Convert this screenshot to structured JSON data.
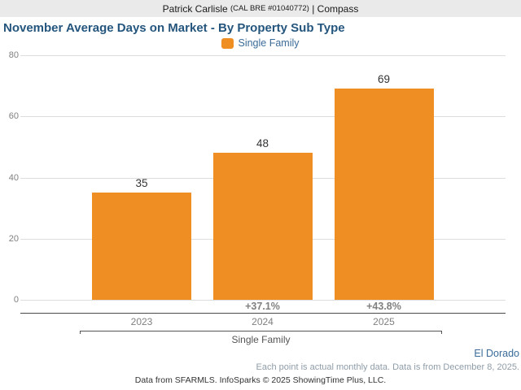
{
  "header": {
    "name": "Patrick Carlisle",
    "license": "(CAL BRE #01040772)",
    "separator": "|",
    "company": "Compass"
  },
  "title": "November Average Days on Market - By Property Sub Type",
  "legend": {
    "label": "Single Family",
    "swatch_color": "#EF8E23"
  },
  "chart_data": {
    "type": "bar",
    "categories": [
      "2023",
      "2024",
      "2025"
    ],
    "values": [
      35,
      48,
      69
    ],
    "pct_change": [
      null,
      "+37.1%",
      "+43.8%"
    ],
    "series_name": "Single Family",
    "title": "November Average Days on Market - By Property Sub Type",
    "xlabel": "Single Family",
    "ylabel": "",
    "ylim": [
      0,
      80
    ],
    "yticks": [
      0,
      20,
      40,
      60,
      80
    ],
    "bar_color": "#EF8E23",
    "grid": true,
    "legend_position": "top"
  },
  "region_label": "El Dorado",
  "note": "Each point is actual monthly data. Data is from December 8, 2025.",
  "footer": "Data from SFARMLS. InfoSparks © 2025 ShowingTime Plus, LLC."
}
